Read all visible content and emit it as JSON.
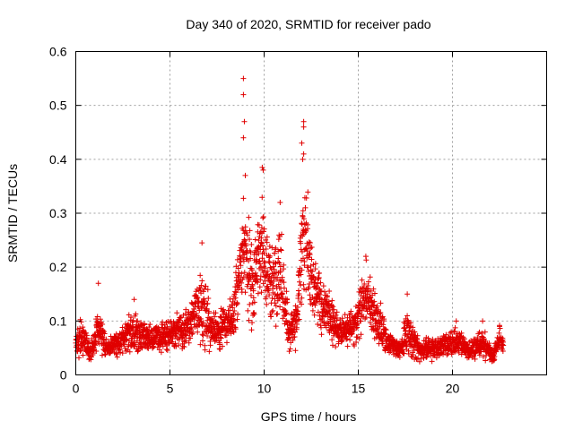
{
  "chart_data": {
    "type": "scatter",
    "title": "Day 340 of 2020, SRMTID for receiver pado",
    "xlabel": "GPS time / hours",
    "ylabel": "SRMTID / TECUs",
    "xlim": [
      0,
      25
    ],
    "ylim": [
      0,
      0.6
    ],
    "xticks": [
      0,
      5,
      10,
      15,
      20
    ],
    "xtick_labels": [
      "0",
      "5",
      "10",
      "15",
      "20"
    ],
    "yticks": [
      0,
      0.1,
      0.2,
      0.3,
      0.4,
      0.5,
      0.6
    ],
    "ytick_labels": [
      "0",
      "0.1",
      "0.2",
      "0.3",
      "0.4",
      "0.5",
      "0.6"
    ],
    "grid": true,
    "marker": "+",
    "color": "#e00000",
    "series": [
      {
        "name": "SRMTID",
        "description": "dense time series of ~2700 samples, 30-s cadence, 0 to ~22.7 h",
        "sample_points": [
          {
            "x": 8.9,
            "y": 0.55
          },
          {
            "x": 8.9,
            "y": 0.52
          },
          {
            "x": 8.95,
            "y": 0.47
          },
          {
            "x": 8.9,
            "y": 0.44
          },
          {
            "x": 12.1,
            "y": 0.47
          },
          {
            "x": 12.1,
            "y": 0.46
          },
          {
            "x": 12.0,
            "y": 0.43
          },
          {
            "x": 12.1,
            "y": 0.41
          },
          {
            "x": 12.05,
            "y": 0.4
          },
          {
            "x": 9.9,
            "y": 0.385
          },
          {
            "x": 9.95,
            "y": 0.38
          },
          {
            "x": 9.0,
            "y": 0.37
          },
          {
            "x": 10.85,
            "y": 0.32
          },
          {
            "x": 6.7,
            "y": 0.245
          },
          {
            "x": 15.4,
            "y": 0.22
          },
          {
            "x": 1.2,
            "y": 0.17
          },
          {
            "x": 17.6,
            "y": 0.15
          },
          {
            "x": 3.1,
            "y": 0.14
          },
          {
            "x": 20.2,
            "y": 0.1
          },
          {
            "x": 21.6,
            "y": 0.1
          },
          {
            "x": 22.5,
            "y": 0.09
          }
        ],
        "envelope": [
          {
            "t": 0.0,
            "base": 0.055,
            "spread": 0.03
          },
          {
            "t": 0.3,
            "base": 0.07,
            "spread": 0.05
          },
          {
            "t": 0.8,
            "base": 0.04,
            "spread": 0.02
          },
          {
            "t": 1.2,
            "base": 0.09,
            "spread": 0.06
          },
          {
            "t": 1.6,
            "base": 0.05,
            "spread": 0.025
          },
          {
            "t": 2.5,
            "base": 0.065,
            "spread": 0.035
          },
          {
            "t": 3.1,
            "base": 0.08,
            "spread": 0.05
          },
          {
            "t": 4.0,
            "base": 0.065,
            "spread": 0.035
          },
          {
            "t": 5.0,
            "base": 0.08,
            "spread": 0.045
          },
          {
            "t": 6.0,
            "base": 0.09,
            "spread": 0.05
          },
          {
            "t": 6.7,
            "base": 0.14,
            "spread": 0.1
          },
          {
            "t": 7.2,
            "base": 0.08,
            "spread": 0.05
          },
          {
            "t": 8.3,
            "base": 0.1,
            "spread": 0.05
          },
          {
            "t": 8.9,
            "base": 0.24,
            "spread": 0.14
          },
          {
            "t": 9.4,
            "base": 0.16,
            "spread": 0.12
          },
          {
            "t": 9.9,
            "base": 0.24,
            "spread": 0.14
          },
          {
            "t": 10.4,
            "base": 0.16,
            "spread": 0.1
          },
          {
            "t": 10.8,
            "base": 0.2,
            "spread": 0.12
          },
          {
            "t": 11.3,
            "base": 0.08,
            "spread": 0.05
          },
          {
            "t": 11.7,
            "base": 0.09,
            "spread": 0.05
          },
          {
            "t": 12.1,
            "base": 0.27,
            "spread": 0.17
          },
          {
            "t": 12.6,
            "base": 0.16,
            "spread": 0.1
          },
          {
            "t": 13.2,
            "base": 0.12,
            "spread": 0.06
          },
          {
            "t": 14.0,
            "base": 0.08,
            "spread": 0.04
          },
          {
            "t": 14.8,
            "base": 0.09,
            "spread": 0.05
          },
          {
            "t": 15.4,
            "base": 0.15,
            "spread": 0.08
          },
          {
            "t": 16.0,
            "base": 0.1,
            "spread": 0.06
          },
          {
            "t": 16.6,
            "base": 0.06,
            "spread": 0.03
          },
          {
            "t": 17.2,
            "base": 0.045,
            "spread": 0.02
          },
          {
            "t": 17.6,
            "base": 0.08,
            "spread": 0.06
          },
          {
            "t": 18.2,
            "base": 0.045,
            "spread": 0.025
          },
          {
            "t": 19.0,
            "base": 0.05,
            "spread": 0.03
          },
          {
            "t": 20.2,
            "base": 0.06,
            "spread": 0.035
          },
          {
            "t": 21.0,
            "base": 0.045,
            "spread": 0.025
          },
          {
            "t": 21.6,
            "base": 0.06,
            "spread": 0.035
          },
          {
            "t": 22.2,
            "base": 0.035,
            "spread": 0.02
          },
          {
            "t": 22.5,
            "base": 0.07,
            "spread": 0.025
          },
          {
            "t": 22.7,
            "base": 0.05,
            "spread": 0.02
          }
        ],
        "t_end": 22.7,
        "samples": 2720
      }
    ]
  }
}
